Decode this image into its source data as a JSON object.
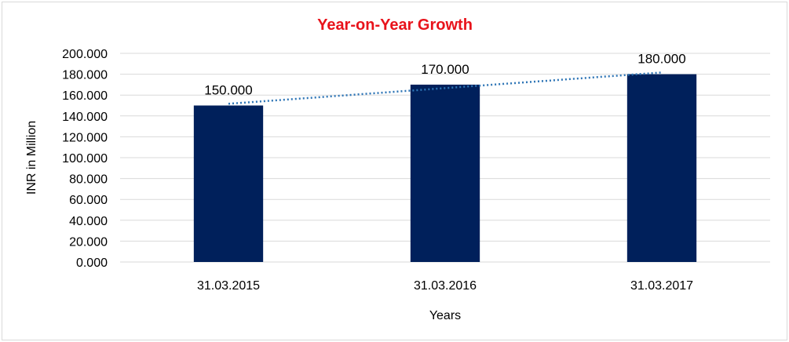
{
  "chart_data": {
    "type": "bar",
    "title": "Year-on-Year Growth",
    "xlabel": "Years",
    "ylabel": "INR in Million",
    "categories": [
      "31.03.2015",
      "31.03.2016",
      "31.03.2017"
    ],
    "values": [
      150,
      170,
      180
    ],
    "data_labels": [
      "150.000",
      "170.000",
      "180.000"
    ],
    "ylim": [
      0,
      200
    ],
    "yticks": [
      0,
      20,
      40,
      60,
      80,
      100,
      120,
      140,
      160,
      180,
      200
    ],
    "ytick_labels": [
      "0.000",
      "20.000",
      "40.000",
      "60.000",
      "80.000",
      "100.000",
      "120.000",
      "140.000",
      "160.000",
      "180.000",
      "200.000"
    ],
    "grid": true,
    "trendline": "linear",
    "colors": {
      "bar": "#00205b",
      "trendline": "#2e75b6",
      "title": "#e8131b",
      "grid": "#d9d9d9"
    }
  }
}
